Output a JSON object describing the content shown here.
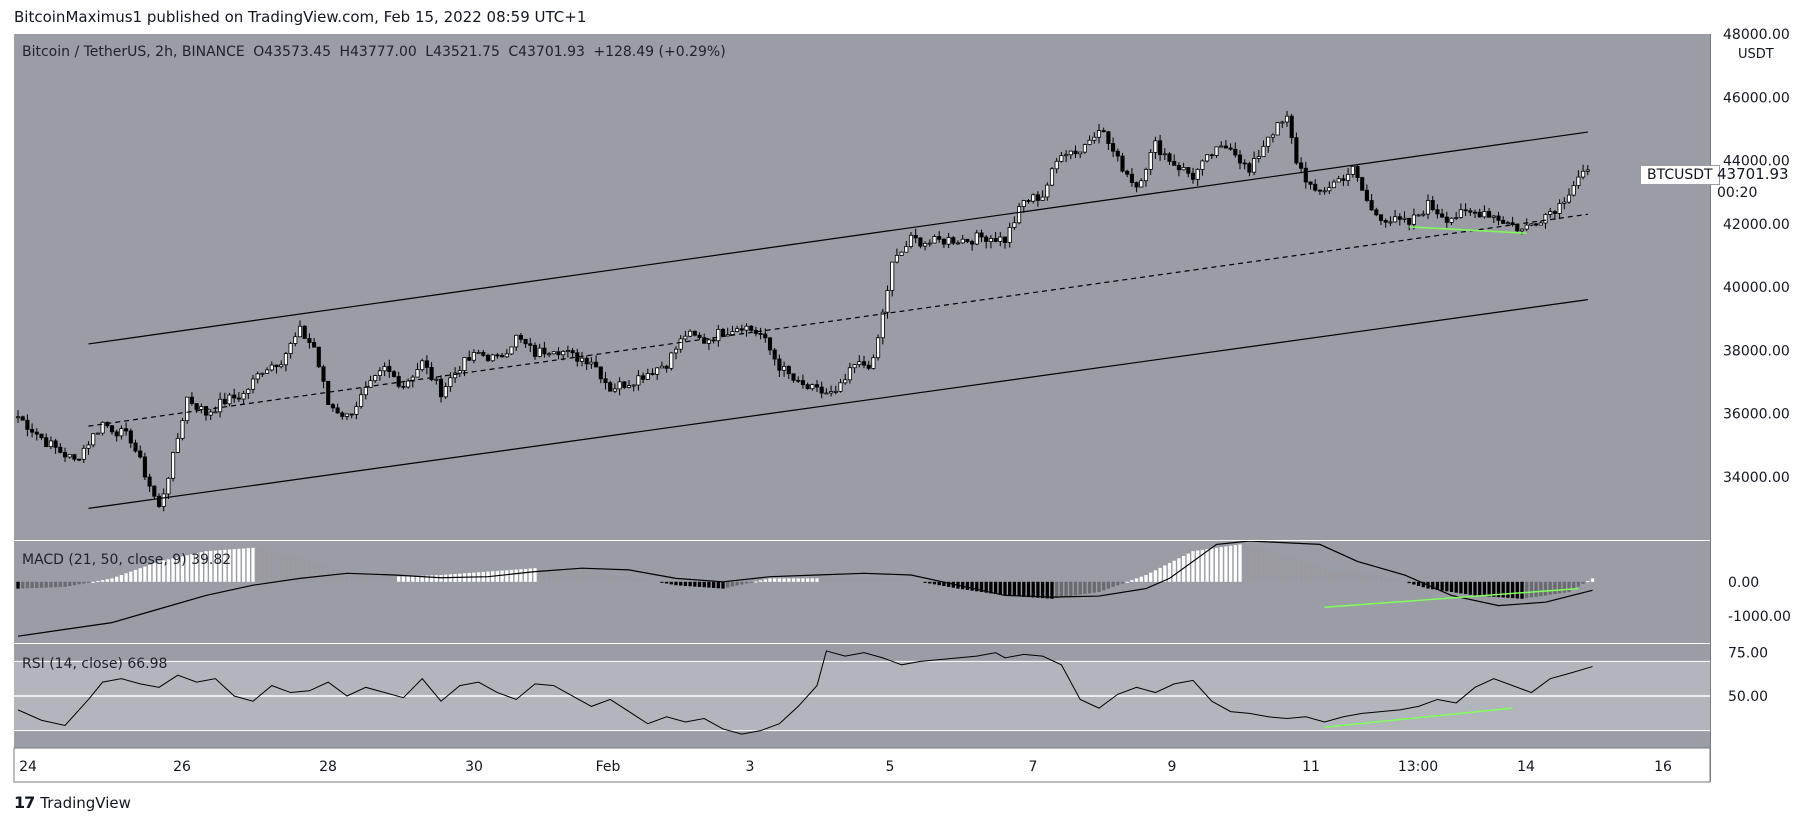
{
  "header": {
    "author": "BitcoinMaximus1",
    "published_on": "published on TradingView.com, Feb 15, 2022 08:59 UTC+1"
  },
  "footer": {
    "logo_mark": "17",
    "brand": "TradingView"
  },
  "colors": {
    "pane_bg": "#9a9ca6",
    "rsi_band": "#b3b5bc",
    "up_candle": "#ffffff",
    "down_candle": "#000000",
    "divergence": "#7fff5a",
    "axis_bg": "#ffffff"
  },
  "legend": {
    "symbol": "Bitcoin / TetherUS, 2h, BINANCE",
    "open": "O43573.45",
    "high": "H43777.00",
    "low": "L43521.75",
    "close": "C43701.93",
    "change": "+128.49 (+0.29%)"
  },
  "macd_legend": {
    "label": "MACD (21, 50, close, 9)",
    "value": "39.82"
  },
  "rsi_legend": {
    "label": "RSI (14, close)",
    "value": "66.98"
  },
  "price_tag": {
    "symbol": "BTCUSDT",
    "price": "43701.93",
    "countdown": "00:20"
  },
  "axis": {
    "currency": "USDT"
  },
  "chart_data": {
    "type": "candlestick",
    "title": "Bitcoin / TetherUS, 2h, BINANCE",
    "price_ticks": [
      "48000.00",
      "46000.00",
      "44000.00",
      "42000.00",
      "40000.00",
      "38000.00",
      "36000.00",
      "34000.00"
    ],
    "price_ylim": [
      32000,
      48000
    ],
    "x_ticks": [
      "24",
      "26",
      "28",
      "30",
      "Feb",
      "3",
      "5",
      "7",
      "9",
      "11",
      "13:00",
      "14",
      "16"
    ],
    "ohlc_path": [
      [
        0,
        35900
      ],
      [
        6,
        35100
      ],
      [
        12,
        34500
      ],
      [
        18,
        35700
      ],
      [
        24,
        35200
      ],
      [
        30,
        33000
      ],
      [
        33,
        34600
      ],
      [
        36,
        36500
      ],
      [
        40,
        36000
      ],
      [
        44,
        36400
      ],
      [
        48,
        36600
      ],
      [
        52,
        37400
      ],
      [
        56,
        37700
      ],
      [
        60,
        38600
      ],
      [
        63,
        38100
      ],
      [
        66,
        36300
      ],
      [
        70,
        35900
      ],
      [
        74,
        36700
      ],
      [
        78,
        37400
      ],
      [
        82,
        36900
      ],
      [
        86,
        37600
      ],
      [
        90,
        36700
      ],
      [
        94,
        37500
      ],
      [
        98,
        37900
      ],
      [
        102,
        37700
      ],
      [
        106,
        38400
      ],
      [
        110,
        37900
      ],
      [
        114,
        38100
      ],
      [
        118,
        37800
      ],
      [
        122,
        37700
      ],
      [
        126,
        36800
      ],
      [
        130,
        37000
      ],
      [
        134,
        37300
      ],
      [
        138,
        37600
      ],
      [
        142,
        38500
      ],
      [
        146,
        38300
      ],
      [
        150,
        38600
      ],
      [
        154,
        38800
      ],
      [
        158,
        38500
      ],
      [
        162,
        37500
      ],
      [
        166,
        36900
      ],
      [
        170,
        36700
      ],
      [
        174,
        36600
      ],
      [
        178,
        37500
      ],
      [
        182,
        37600
      ],
      [
        186,
        40700
      ],
      [
        190,
        41500
      ],
      [
        194,
        41400
      ],
      [
        198,
        41500
      ],
      [
        202,
        41500
      ],
      [
        206,
        41600
      ],
      [
        210,
        41500
      ],
      [
        214,
        42700
      ],
      [
        218,
        42900
      ],
      [
        222,
        44300
      ],
      [
        226,
        44300
      ],
      [
        230,
        45100
      ],
      [
        234,
        44000
      ],
      [
        238,
        43200
      ],
      [
        242,
        44500
      ],
      [
        246,
        43900
      ],
      [
        250,
        43500
      ],
      [
        254,
        44200
      ],
      [
        258,
        44500
      ],
      [
        262,
        43600
      ],
      [
        266,
        44800
      ],
      [
        270,
        45300
      ],
      [
        272,
        44000
      ],
      [
        276,
        42900
      ],
      [
        280,
        43300
      ],
      [
        284,
        43700
      ],
      [
        288,
        42400
      ],
      [
        292,
        42100
      ],
      [
        296,
        42000
      ],
      [
        300,
        42600
      ],
      [
        304,
        42200
      ],
      [
        308,
        42300
      ],
      [
        312,
        42400
      ],
      [
        316,
        42100
      ],
      [
        320,
        41800
      ],
      [
        324,
        42200
      ],
      [
        328,
        42600
      ],
      [
        332,
        43500
      ],
      [
        334,
        43700
      ]
    ],
    "channel_lines": [
      {
        "name": "upper",
        "x": [
          15,
          334
        ],
        "y": [
          38200,
          44900
        ]
      },
      {
        "name": "middle",
        "x": [
          15,
          334
        ],
        "y": [
          35600,
          42300
        ],
        "dashed": true
      },
      {
        "name": "lower",
        "x": [
          15,
          334
        ],
        "y": [
          33000,
          39600
        ]
      }
    ],
    "price_divergence": {
      "x": [
        296,
        321
      ],
      "y": [
        41900,
        41700
      ]
    },
    "macd": {
      "ticks": [
        "0.00",
        "-1000.00"
      ],
      "ylim": [
        -1800,
        1200
      ],
      "line": [
        [
          0,
          -1600
        ],
        [
          10,
          -1400
        ],
        [
          20,
          -1200
        ],
        [
          30,
          -800
        ],
        [
          40,
          -400
        ],
        [
          50,
          -100
        ],
        [
          60,
          100
        ],
        [
          70,
          250
        ],
        [
          80,
          200
        ],
        [
          90,
          120
        ],
        [
          100,
          150
        ],
        [
          110,
          300
        ],
        [
          120,
          400
        ],
        [
          130,
          350
        ],
        [
          140,
          100
        ],
        [
          150,
          0
        ],
        [
          160,
          150
        ],
        [
          170,
          200
        ],
        [
          180,
          250
        ],
        [
          190,
          200
        ],
        [
          200,
          -100
        ],
        [
          210,
          -400
        ],
        [
          220,
          -450
        ],
        [
          230,
          -420
        ],
        [
          240,
          -200
        ],
        [
          245,
          100
        ],
        [
          255,
          1100
        ],
        [
          262,
          1200
        ],
        [
          277,
          1100
        ],
        [
          285,
          600
        ],
        [
          295,
          200
        ],
        [
          305,
          -400
        ],
        [
          315,
          -700
        ],
        [
          325,
          -600
        ],
        [
          335,
          -250
        ]
      ],
      "histogram": [
        [
          0,
          -200
        ],
        [
          10,
          -150
        ],
        [
          20,
          100
        ],
        [
          30,
          600
        ],
        [
          40,
          900
        ],
        [
          50,
          1000
        ],
        [
          60,
          700
        ],
        [
          70,
          300
        ],
        [
          80,
          150
        ],
        [
          90,
          200
        ],
        [
          100,
          300
        ],
        [
          110,
          400
        ],
        [
          120,
          300
        ],
        [
          130,
          150
        ],
        [
          140,
          -100
        ],
        [
          150,
          -200
        ],
        [
          160,
          100
        ],
        [
          170,
          100
        ],
        [
          180,
          80
        ],
        [
          190,
          50
        ],
        [
          200,
          -200
        ],
        [
          210,
          -400
        ],
        [
          220,
          -500
        ],
        [
          230,
          -300
        ],
        [
          240,
          200
        ],
        [
          250,
          900
        ],
        [
          260,
          1100
        ],
        [
          270,
          800
        ],
        [
          280,
          300
        ],
        [
          290,
          200
        ],
        [
          300,
          -200
        ],
        [
          310,
          -400
        ],
        [
          320,
          -500
        ],
        [
          330,
          -300
        ],
        [
          335,
          100
        ]
      ],
      "divergence": {
        "x": [
          278,
          332
        ],
        "y": [
          -750,
          -200
        ]
      }
    },
    "rsi": {
      "ticks": [
        "75.00",
        "50.00"
      ],
      "ylim": [
        20,
        80
      ],
      "band": [
        30,
        70
      ],
      "midline": 50,
      "values": [
        [
          0,
          42
        ],
        [
          5,
          36
        ],
        [
          10,
          33
        ],
        [
          15,
          48
        ],
        [
          18,
          58
        ],
        [
          22,
          60
        ],
        [
          26,
          57
        ],
        [
          30,
          55
        ],
        [
          34,
          62
        ],
        [
          38,
          58
        ],
        [
          42,
          60
        ],
        [
          46,
          50
        ],
        [
          50,
          47
        ],
        [
          54,
          56
        ],
        [
          58,
          52
        ],
        [
          62,
          53
        ],
        [
          66,
          58
        ],
        [
          70,
          50
        ],
        [
          74,
          55
        ],
        [
          78,
          52
        ],
        [
          82,
          49
        ],
        [
          86,
          60
        ],
        [
          90,
          47
        ],
        [
          94,
          56
        ],
        [
          98,
          58
        ],
        [
          102,
          52
        ],
        [
          106,
          48
        ],
        [
          110,
          57
        ],
        [
          114,
          56
        ],
        [
          118,
          50
        ],
        [
          122,
          44
        ],
        [
          126,
          48
        ],
        [
          130,
          41
        ],
        [
          134,
          34
        ],
        [
          138,
          38
        ],
        [
          142,
          35
        ],
        [
          146,
          37
        ],
        [
          150,
          31
        ],
        [
          154,
          28
        ],
        [
          158,
          30
        ],
        [
          162,
          34
        ],
        [
          166,
          44
        ],
        [
          170,
          56
        ],
        [
          172,
          76
        ],
        [
          176,
          73
        ],
        [
          180,
          75
        ],
        [
          184,
          72
        ],
        [
          188,
          68
        ],
        [
          192,
          70
        ],
        [
          196,
          71
        ],
        [
          200,
          72
        ],
        [
          204,
          73
        ],
        [
          208,
          75
        ],
        [
          210,
          72
        ],
        [
          214,
          74
        ],
        [
          218,
          73
        ],
        [
          222,
          68
        ],
        [
          226,
          48
        ],
        [
          230,
          43
        ],
        [
          234,
          51
        ],
        [
          238,
          55
        ],
        [
          242,
          52
        ],
        [
          246,
          57
        ],
        [
          250,
          59
        ],
        [
          254,
          47
        ],
        [
          258,
          41
        ],
        [
          262,
          40
        ],
        [
          266,
          38
        ],
        [
          270,
          37
        ],
        [
          274,
          38
        ],
        [
          278,
          35
        ],
        [
          282,
          38
        ],
        [
          286,
          40
        ],
        [
          290,
          41
        ],
        [
          294,
          42
        ],
        [
          298,
          44
        ],
        [
          302,
          48
        ],
        [
          306,
          46
        ],
        [
          310,
          55
        ],
        [
          314,
          60
        ],
        [
          318,
          56
        ],
        [
          322,
          52
        ],
        [
          326,
          60
        ],
        [
          330,
          63
        ],
        [
          335,
          66.98
        ]
      ],
      "divergence": {
        "x": [
          278,
          318
        ],
        "y": [
          32,
          43
        ]
      }
    }
  }
}
